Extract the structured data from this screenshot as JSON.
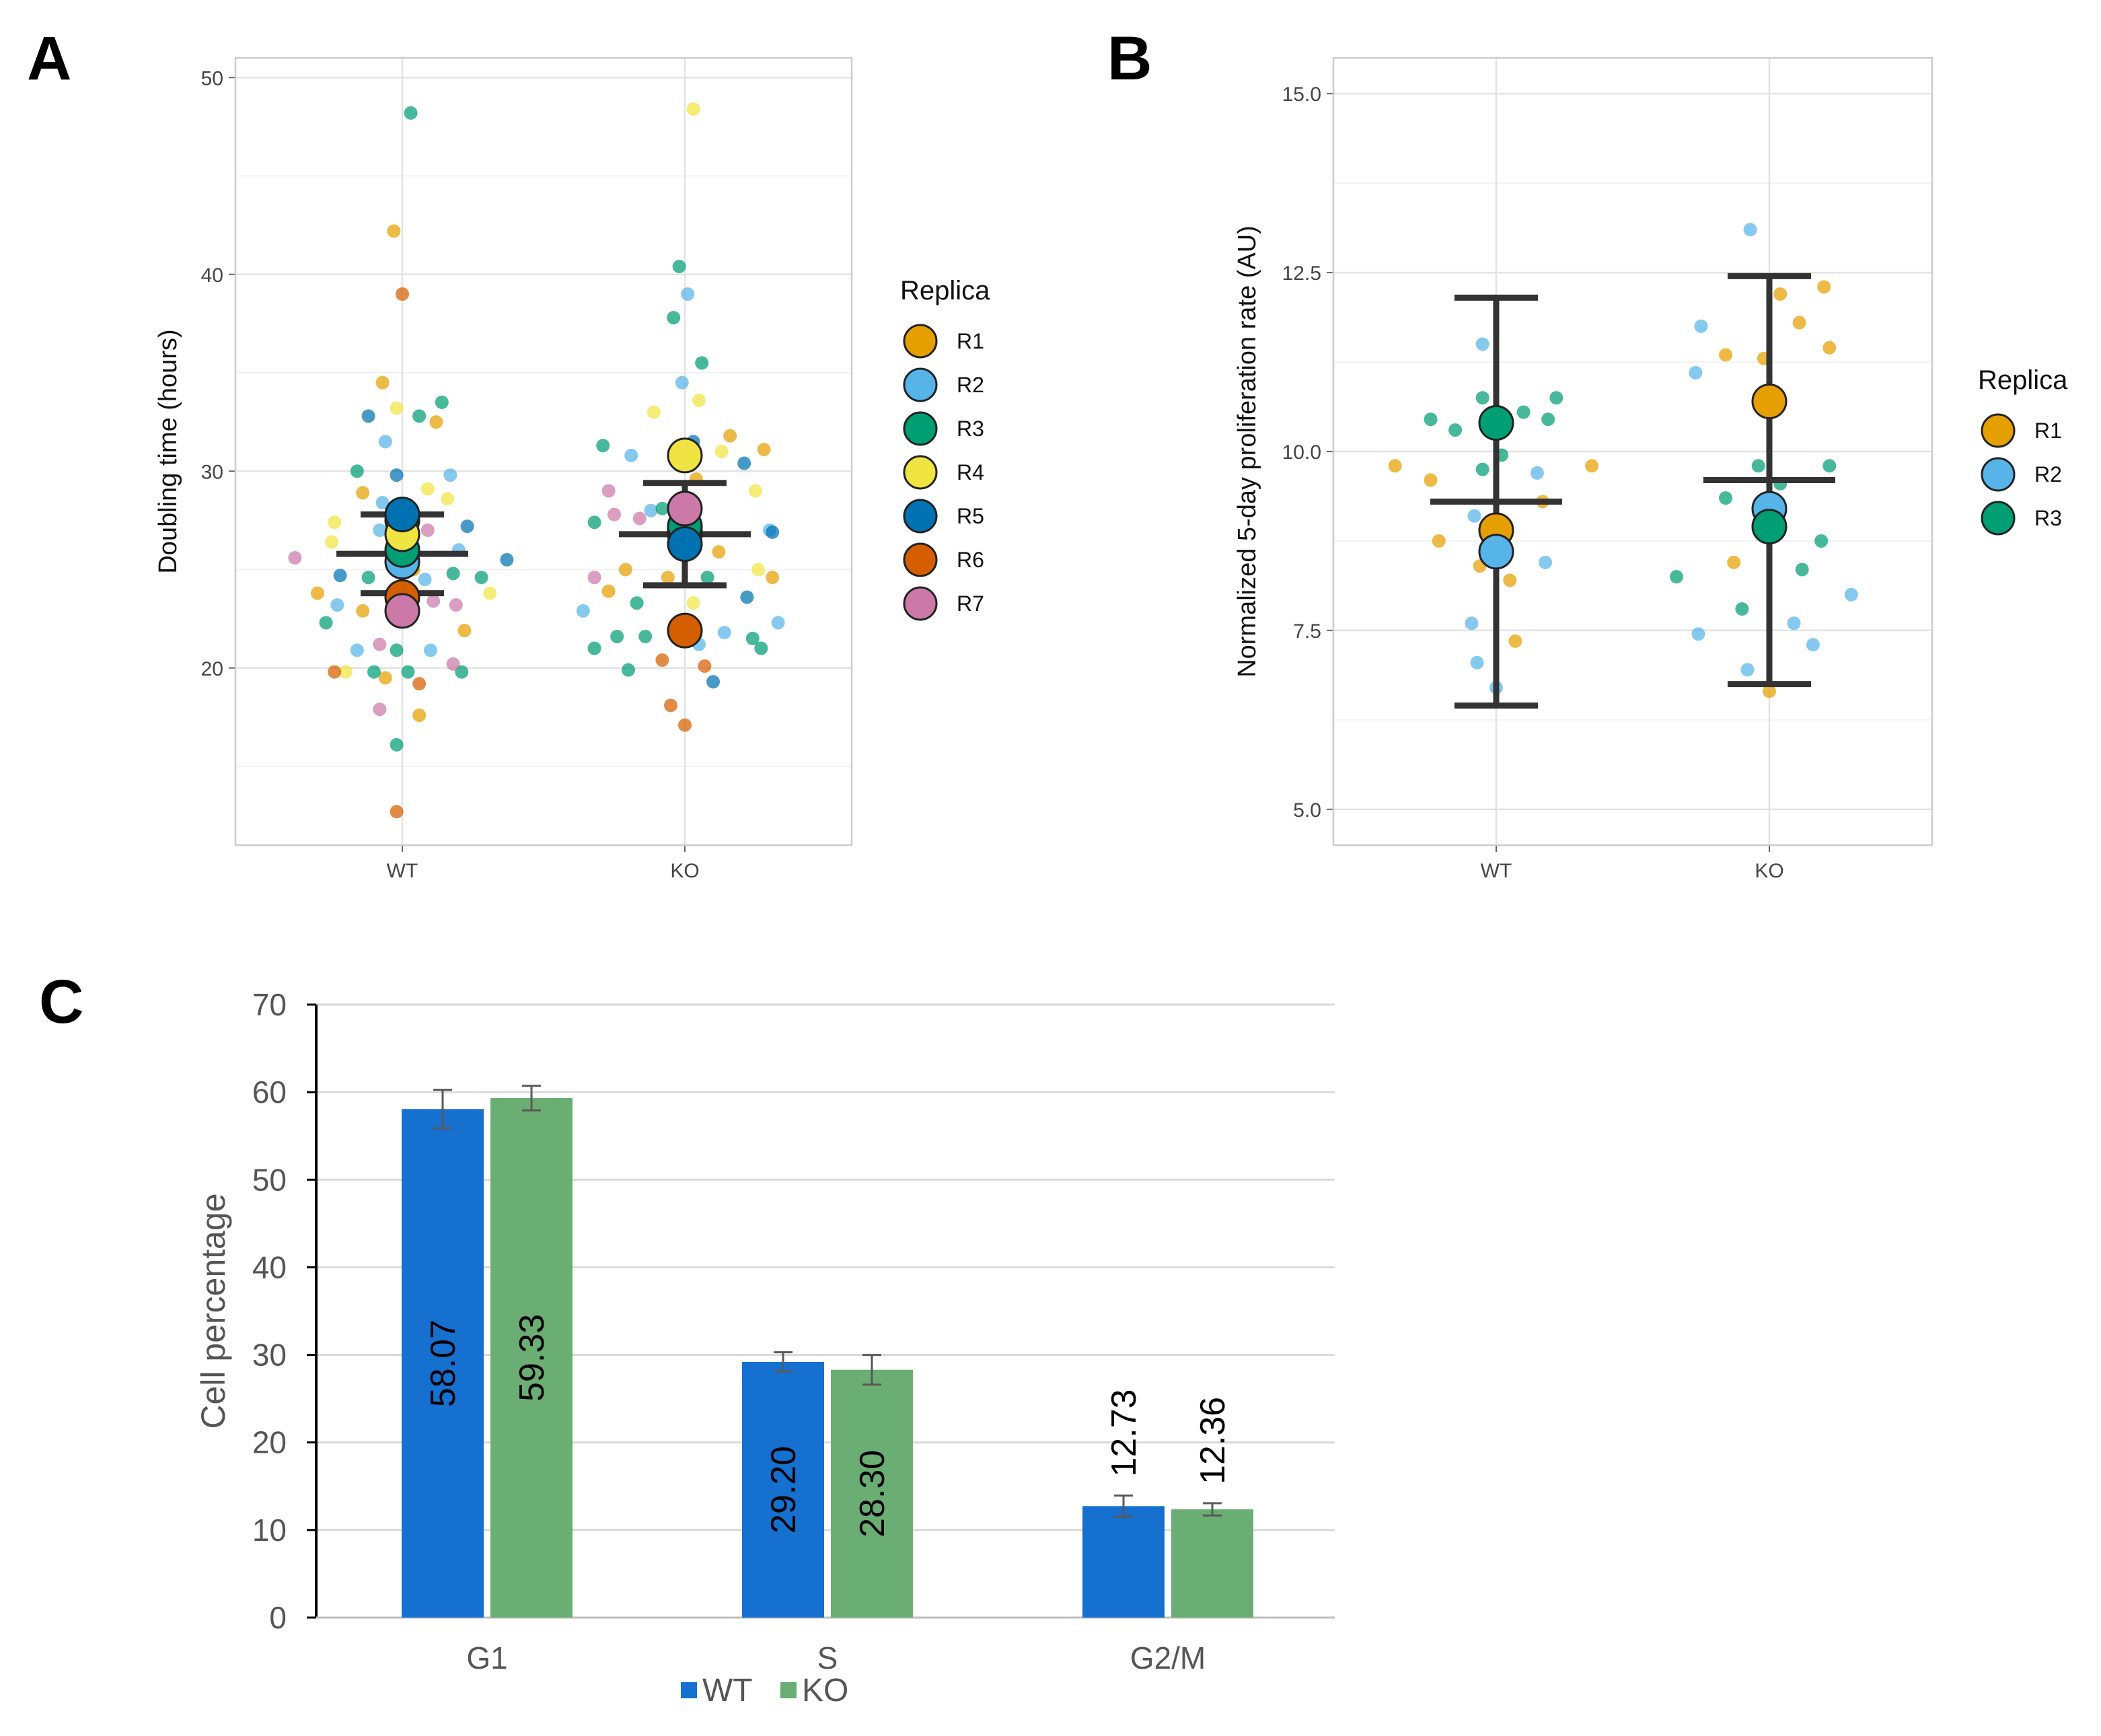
{
  "colors": {
    "R1": "#E69F00",
    "R2": "#56B4E9",
    "R3": "#009E73",
    "R4": "#F0E442",
    "R5": "#0072B2",
    "R6": "#D55E00",
    "R7": "#CC79A7",
    "WT_bar": "#1570D0",
    "KO_bar": "#6AAE73",
    "summary": "#333333"
  },
  "chart_data": [
    {
      "panel": "A",
      "type": "scatter",
      "ylabel": "Doubling time (hours)",
      "xlabel": "",
      "ylim": [
        11,
        51
      ],
      "yticks": [
        20,
        30,
        40,
        50
      ],
      "categories": [
        "WT",
        "KO"
      ],
      "legend_title": "Replica",
      "legend": [
        "R1",
        "R2",
        "R3",
        "R4",
        "R5",
        "R6",
        "R7"
      ],
      "legend_placement": "right",
      "replica_means": {
        "WT": {
          "R1": 27.5,
          "R2": 25.4,
          "R3": 26.0,
          "R4": 26.8,
          "R5": 27.8,
          "R6": 23.6,
          "R7": 22.9
        },
        "KO": {
          "R1": 27.0,
          "R2": 26.8,
          "R3": 27.2,
          "R4": 30.8,
          "R5": 26.3,
          "R6": 21.9,
          "R7": 28.1
        }
      },
      "summary": {
        "WT": {
          "mean": 25.8,
          "lower": 23.8,
          "upper": 27.8
        },
        "KO": {
          "mean": 26.8,
          "lower": 24.2,
          "upper": 29.4
        }
      },
      "cells": {
        "WT": [
          {
            "r": "R1",
            "dx": -0.03,
            "y": 42.2
          },
          {
            "r": "R1",
            "dx": -0.07,
            "y": 34.5
          },
          {
            "r": "R1",
            "dx": 0.12,
            "y": 32.5
          },
          {
            "r": "R1",
            "dx": -0.14,
            "y": 28.9
          },
          {
            "r": "R1",
            "dx": 0.04,
            "y": 25.0
          },
          {
            "r": "R1",
            "dx": -0.3,
            "y": 23.8
          },
          {
            "r": "R1",
            "dx": -0.14,
            "y": 22.9
          },
          {
            "r": "R1",
            "dx": 0.22,
            "y": 21.9
          },
          {
            "r": "R1",
            "dx": -0.06,
            "y": 19.5
          },
          {
            "r": "R1",
            "dx": 0.06,
            "y": 17.6
          },
          {
            "r": "R2",
            "dx": -0.06,
            "y": 31.5
          },
          {
            "r": "R2",
            "dx": 0.17,
            "y": 29.8
          },
          {
            "r": "R2",
            "dx": -0.07,
            "y": 28.4
          },
          {
            "r": "R2",
            "dx": -0.08,
            "y": 27.0
          },
          {
            "r": "R2",
            "dx": 0.08,
            "y": 24.5
          },
          {
            "r": "R2",
            "dx": -0.23,
            "y": 23.2
          },
          {
            "r": "R2",
            "dx": 0.1,
            "y": 20.9
          },
          {
            "r": "R2",
            "dx": -0.16,
            "y": 20.9
          },
          {
            "r": "R2",
            "dx": 0.2,
            "y": 26.0
          },
          {
            "r": "R3",
            "dx": 0.03,
            "y": 48.2
          },
          {
            "r": "R3",
            "dx": 0.06,
            "y": 32.8
          },
          {
            "r": "R3",
            "dx": 0.14,
            "y": 33.5
          },
          {
            "r": "R3",
            "dx": -0.16,
            "y": 30.0
          },
          {
            "r": "R3",
            "dx": -0.12,
            "y": 24.6
          },
          {
            "r": "R3",
            "dx": 0.18,
            "y": 24.8
          },
          {
            "r": "R3",
            "dx": 0.28,
            "y": 24.6
          },
          {
            "r": "R3",
            "dx": -0.27,
            "y": 22.3
          },
          {
            "r": "R3",
            "dx": -0.02,
            "y": 20.9
          },
          {
            "r": "R3",
            "dx": -0.1,
            "y": 19.8
          },
          {
            "r": "R3",
            "dx": 0.02,
            "y": 19.8
          },
          {
            "r": "R3",
            "dx": 0.21,
            "y": 19.8
          },
          {
            "r": "R3",
            "dx": -0.02,
            "y": 16.1
          },
          {
            "r": "R4",
            "dx": -0.02,
            "y": 33.2
          },
          {
            "r": "R4",
            "dx": 0.09,
            "y": 29.1
          },
          {
            "r": "R4",
            "dx": 0.16,
            "y": 28.6
          },
          {
            "r": "R4",
            "dx": -0.24,
            "y": 27.4
          },
          {
            "r": "R4",
            "dx": -0.25,
            "y": 26.4
          },
          {
            "r": "R4",
            "dx": 0.31,
            "y": 23.8
          },
          {
            "r": "R4",
            "dx": -0.2,
            "y": 19.8
          },
          {
            "r": "R5",
            "dx": -0.12,
            "y": 32.8
          },
          {
            "r": "R5",
            "dx": -0.02,
            "y": 29.8
          },
          {
            "r": "R5",
            "dx": 0.23,
            "y": 27.2
          },
          {
            "r": "R5",
            "dx": 0.37,
            "y": 25.5
          },
          {
            "r": "R5",
            "dx": -0.22,
            "y": 24.7
          },
          {
            "r": "R6",
            "dx": 0.0,
            "y": 39.0
          },
          {
            "r": "R6",
            "dx": -0.24,
            "y": 19.8
          },
          {
            "r": "R6",
            "dx": 0.06,
            "y": 19.2
          },
          {
            "r": "R6",
            "dx": -0.02,
            "y": 12.7
          },
          {
            "r": "R7",
            "dx": -0.38,
            "y": 25.6
          },
          {
            "r": "R7",
            "dx": 0.09,
            "y": 27.0
          },
          {
            "r": "R7",
            "dx": 0.11,
            "y": 23.4
          },
          {
            "r": "R7",
            "dx": 0.19,
            "y": 23.2
          },
          {
            "r": "R7",
            "dx": -0.08,
            "y": 21.2
          },
          {
            "r": "R7",
            "dx": 0.18,
            "y": 20.2
          },
          {
            "r": "R7",
            "dx": -0.08,
            "y": 17.9
          }
        ],
        "KO": [
          {
            "r": "R1",
            "dx": 0.16,
            "y": 31.8
          },
          {
            "r": "R1",
            "dx": 0.28,
            "y": 31.1
          },
          {
            "r": "R1",
            "dx": 0.04,
            "y": 29.6
          },
          {
            "r": "R1",
            "dx": -0.21,
            "y": 25.0
          },
          {
            "r": "R1",
            "dx": -0.06,
            "y": 24.6
          },
          {
            "r": "R1",
            "dx": 0.12,
            "y": 25.9
          },
          {
            "r": "R1",
            "dx": -0.27,
            "y": 23.9
          },
          {
            "r": "R1",
            "dx": 0.31,
            "y": 24.6
          },
          {
            "r": "R2",
            "dx": 0.01,
            "y": 39.0
          },
          {
            "r": "R2",
            "dx": -0.01,
            "y": 34.5
          },
          {
            "r": "R2",
            "dx": -0.19,
            "y": 30.8
          },
          {
            "r": "R2",
            "dx": -0.12,
            "y": 28.0
          },
          {
            "r": "R2",
            "dx": 0.3,
            "y": 27.0
          },
          {
            "r": "R2",
            "dx": -0.36,
            "y": 22.9
          },
          {
            "r": "R2",
            "dx": 0.14,
            "y": 21.8
          },
          {
            "r": "R2",
            "dx": 0.33,
            "y": 22.3
          },
          {
            "r": "R2",
            "dx": 0.05,
            "y": 21.2
          },
          {
            "r": "R3",
            "dx": -0.02,
            "y": 40.4
          },
          {
            "r": "R3",
            "dx": -0.04,
            "y": 37.8
          },
          {
            "r": "R3",
            "dx": 0.06,
            "y": 35.5
          },
          {
            "r": "R3",
            "dx": -0.29,
            "y": 31.3
          },
          {
            "r": "R3",
            "dx": -0.08,
            "y": 28.1
          },
          {
            "r": "R3",
            "dx": -0.32,
            "y": 27.4
          },
          {
            "r": "R3",
            "dx": 0.08,
            "y": 24.6
          },
          {
            "r": "R3",
            "dx": -0.17,
            "y": 23.3
          },
          {
            "r": "R3",
            "dx": -0.24,
            "y": 21.6
          },
          {
            "r": "R3",
            "dx": -0.14,
            "y": 21.6
          },
          {
            "r": "R3",
            "dx": 0.24,
            "y": 21.5
          },
          {
            "r": "R3",
            "dx": 0.27,
            "y": 21.0
          },
          {
            "r": "R3",
            "dx": -0.32,
            "y": 21.0
          },
          {
            "r": "R3",
            "dx": -0.2,
            "y": 19.9
          },
          {
            "r": "R4",
            "dx": 0.03,
            "y": 48.4
          },
          {
            "r": "R4",
            "dx": 0.05,
            "y": 33.6
          },
          {
            "r": "R4",
            "dx": -0.11,
            "y": 33.0
          },
          {
            "r": "R4",
            "dx": 0.13,
            "y": 31.0
          },
          {
            "r": "R4",
            "dx": 0.25,
            "y": 29.0
          },
          {
            "r": "R4",
            "dx": 0.26,
            "y": 25.0
          },
          {
            "r": "R4",
            "dx": 0.03,
            "y": 23.3
          },
          {
            "r": "R5",
            "dx": 0.03,
            "y": 31.5
          },
          {
            "r": "R5",
            "dx": 0.21,
            "y": 30.4
          },
          {
            "r": "R5",
            "dx": 0.31,
            "y": 26.9
          },
          {
            "r": "R5",
            "dx": 0.22,
            "y": 23.6
          },
          {
            "r": "R5",
            "dx": 0.1,
            "y": 19.3
          },
          {
            "r": "R6",
            "dx": -0.08,
            "y": 20.4
          },
          {
            "r": "R6",
            "dx": 0.07,
            "y": 20.1
          },
          {
            "r": "R6",
            "dx": -0.05,
            "y": 18.1
          },
          {
            "r": "R6",
            "dx": 0.0,
            "y": 17.1
          },
          {
            "r": "R7",
            "dx": -0.27,
            "y": 29.0
          },
          {
            "r": "R7",
            "dx": -0.25,
            "y": 27.8
          },
          {
            "r": "R7",
            "dx": -0.16,
            "y": 27.6
          },
          {
            "r": "R7",
            "dx": -0.32,
            "y": 24.6
          }
        ]
      }
    },
    {
      "panel": "B",
      "type": "scatter",
      "ylabel": "Normalized  5-day proliferation rate (AU)",
      "xlabel": "",
      "ylim": [
        4.5,
        15.5
      ],
      "yticks": [
        5.0,
        7.5,
        10.0,
        12.5,
        15.0
      ],
      "ytick_labels": [
        "5.0",
        "7.5",
        "10.0",
        "12.5",
        "15.0"
      ],
      "categories": [
        "WT",
        "KO"
      ],
      "legend_title": "Replica",
      "legend": [
        "R1",
        "R2",
        "R3"
      ],
      "legend_placement": "right",
      "replica_means": {
        "WT": {
          "R1": 8.9,
          "R2": 8.6,
          "R3": 10.4
        },
        "KO": {
          "R1": 10.7,
          "R2": 9.2,
          "R3": 8.95
        }
      },
      "summary": {
        "WT": {
          "mean": 9.3,
          "lower": 6.45,
          "upper": 12.15
        },
        "KO": {
          "mean": 9.6,
          "lower": 6.75,
          "upper": 12.45
        }
      },
      "cells": {
        "WT": [
          {
            "r": "R1",
            "dx": -0.37,
            "y": 9.8
          },
          {
            "r": "R1",
            "dx": -0.24,
            "y": 9.6
          },
          {
            "r": "R1",
            "dx": 0.17,
            "y": 9.3
          },
          {
            "r": "R1",
            "dx": 0.35,
            "y": 9.8
          },
          {
            "r": "R1",
            "dx": -0.21,
            "y": 8.75
          },
          {
            "r": "R1",
            "dx": -0.06,
            "y": 8.4
          },
          {
            "r": "R1",
            "dx": 0.05,
            "y": 8.2
          },
          {
            "r": "R1",
            "dx": 0.07,
            "y": 7.35
          },
          {
            "r": "R2",
            "dx": -0.05,
            "y": 11.5
          },
          {
            "r": "R2",
            "dx": 0.15,
            "y": 9.7
          },
          {
            "r": "R2",
            "dx": -0.08,
            "y": 9.1
          },
          {
            "r": "R2",
            "dx": 0.18,
            "y": 8.45
          },
          {
            "r": "R2",
            "dx": -0.09,
            "y": 7.6
          },
          {
            "r": "R2",
            "dx": -0.07,
            "y": 7.05
          },
          {
            "r": "R2",
            "dx": 0.0,
            "y": 6.7
          },
          {
            "r": "R3",
            "dx": -0.05,
            "y": 10.75
          },
          {
            "r": "R3",
            "dx": 0.1,
            "y": 10.55
          },
          {
            "r": "R3",
            "dx": 0.22,
            "y": 10.75
          },
          {
            "r": "R3",
            "dx": -0.24,
            "y": 10.45
          },
          {
            "r": "R3",
            "dx": -0.15,
            "y": 10.3
          },
          {
            "r": "R3",
            "dx": 0.19,
            "y": 10.45
          },
          {
            "r": "R3",
            "dx": 0.02,
            "y": 9.95
          },
          {
            "r": "R3",
            "dx": -0.05,
            "y": 9.75
          }
        ],
        "KO": [
          {
            "r": "R1",
            "dx": 0.04,
            "y": 12.2
          },
          {
            "r": "R1",
            "dx": 0.2,
            "y": 12.3
          },
          {
            "r": "R1",
            "dx": 0.11,
            "y": 11.8
          },
          {
            "r": "R1",
            "dx": -0.16,
            "y": 11.35
          },
          {
            "r": "R1",
            "dx": -0.02,
            "y": 11.3
          },
          {
            "r": "R1",
            "dx": 0.22,
            "y": 11.45
          },
          {
            "r": "R1",
            "dx": -0.13,
            "y": 8.45
          },
          {
            "r": "R1",
            "dx": 0.0,
            "y": 6.65
          },
          {
            "r": "R2",
            "dx": -0.07,
            "y": 13.1
          },
          {
            "r": "R2",
            "dx": -0.25,
            "y": 11.75
          },
          {
            "r": "R2",
            "dx": -0.27,
            "y": 11.1
          },
          {
            "r": "R2",
            "dx": 0.3,
            "y": 8.0
          },
          {
            "r": "R2",
            "dx": -0.26,
            "y": 7.45
          },
          {
            "r": "R2",
            "dx": 0.09,
            "y": 7.6
          },
          {
            "r": "R2",
            "dx": 0.16,
            "y": 7.3
          },
          {
            "r": "R2",
            "dx": -0.08,
            "y": 6.95
          },
          {
            "r": "R3",
            "dx": 0.22,
            "y": 9.8
          },
          {
            "r": "R3",
            "dx": -0.04,
            "y": 9.8
          },
          {
            "r": "R3",
            "dx": 0.04,
            "y": 9.55
          },
          {
            "r": "R3",
            "dx": -0.16,
            "y": 9.35
          },
          {
            "r": "R3",
            "dx": -0.34,
            "y": 8.25
          },
          {
            "r": "R3",
            "dx": 0.12,
            "y": 8.35
          },
          {
            "r": "R3",
            "dx": 0.19,
            "y": 8.75
          },
          {
            "r": "R3",
            "dx": -0.1,
            "y": 7.8
          }
        ]
      }
    },
    {
      "panel": "C",
      "type": "bar",
      "ylabel": "Cell percentage",
      "xlabel": "",
      "ylim": [
        0,
        70
      ],
      "yticks": [
        0,
        10,
        20,
        30,
        40,
        50,
        60,
        70
      ],
      "categories": [
        "G1",
        "S",
        "G2/M"
      ],
      "series": [
        {
          "name": "WT",
          "values": [
            58.07,
            29.2,
            12.73
          ],
          "labels": [
            "58.07",
            "29.20",
            "12.73"
          ],
          "errors": [
            2.2,
            1.1,
            1.2
          ]
        },
        {
          "name": "KO",
          "values": [
            59.33,
            28.3,
            12.36
          ],
          "labels": [
            "59.33",
            "28.30",
            "12.36"
          ],
          "errors": [
            1.4,
            1.7,
            0.7
          ]
        }
      ],
      "legend_placement": "bottom"
    }
  ],
  "panels": {
    "A": "A",
    "B": "B",
    "C": "C"
  }
}
